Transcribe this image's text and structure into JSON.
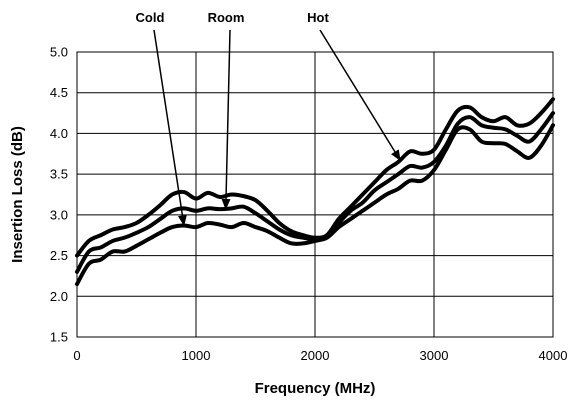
{
  "chart_data": {
    "type": "line",
    "title": "",
    "xlabel": "Frequency (MHz)",
    "ylabel": "Insertion Loss (dB)",
    "xlim": [
      0,
      4000
    ],
    "ylim": [
      1.5,
      5.0
    ],
    "x_ticks": [
      0,
      1000,
      2000,
      3000,
      4000
    ],
    "x_tick_labels": [
      "0",
      "1000",
      "2000",
      "3000",
      "4000"
    ],
    "y_ticks": [
      1.5,
      2.0,
      2.5,
      3.0,
      3.5,
      4.0,
      4.5,
      5.0
    ],
    "y_tick_labels": [
      "1.5",
      "2.0",
      "2.5",
      "3.0",
      "3.5",
      "4.0",
      "4.5",
      "5.0"
    ],
    "grid": true,
    "legend": "none",
    "series": [
      {
        "name": "Cold",
        "x": [
          0,
          100,
          200,
          300,
          400,
          500,
          600,
          700,
          800,
          900,
          1000,
          1100,
          1200,
          1300,
          1400,
          1500,
          1600,
          1700,
          1800,
          1900,
          2000,
          2100,
          2200,
          2300,
          2400,
          2500,
          2600,
          2700,
          2800,
          2900,
          3000,
          3100,
          3200,
          3300,
          3400,
          3500,
          3600,
          3700,
          3800,
          3900,
          4000
        ],
        "values": [
          2.15,
          2.4,
          2.45,
          2.55,
          2.55,
          2.62,
          2.7,
          2.78,
          2.85,
          2.87,
          2.85,
          2.9,
          2.88,
          2.85,
          2.9,
          2.85,
          2.8,
          2.72,
          2.65,
          2.65,
          2.68,
          2.72,
          2.85,
          2.95,
          3.05,
          3.15,
          3.25,
          3.32,
          3.42,
          3.42,
          3.55,
          3.8,
          4.05,
          4.05,
          3.9,
          3.88,
          3.87,
          3.78,
          3.7,
          3.85,
          4.1
        ]
      },
      {
        "name": "Room",
        "x": [
          0,
          100,
          200,
          300,
          400,
          500,
          600,
          700,
          800,
          900,
          1000,
          1100,
          1200,
          1300,
          1400,
          1500,
          1600,
          1700,
          1800,
          1900,
          2000,
          2100,
          2200,
          2300,
          2400,
          2500,
          2600,
          2700,
          2800,
          2900,
          3000,
          3100,
          3200,
          3300,
          3400,
          3500,
          3600,
          3700,
          3800,
          3900,
          4000
        ],
        "values": [
          2.3,
          2.55,
          2.6,
          2.68,
          2.72,
          2.78,
          2.85,
          2.95,
          3.05,
          3.08,
          3.05,
          3.08,
          3.07,
          3.08,
          3.1,
          3.02,
          2.92,
          2.82,
          2.75,
          2.72,
          2.7,
          2.72,
          2.9,
          3.05,
          3.15,
          3.3,
          3.4,
          3.5,
          3.6,
          3.58,
          3.65,
          3.85,
          4.12,
          4.2,
          4.1,
          4.07,
          4.05,
          3.97,
          3.9,
          4.05,
          4.25
        ]
      },
      {
        "name": "Hot",
        "x": [
          0,
          100,
          200,
          300,
          400,
          500,
          600,
          700,
          800,
          900,
          1000,
          1100,
          1200,
          1300,
          1400,
          1500,
          1600,
          1700,
          1800,
          1900,
          2000,
          2100,
          2200,
          2300,
          2400,
          2500,
          2600,
          2700,
          2800,
          2900,
          3000,
          3100,
          3200,
          3300,
          3400,
          3500,
          3600,
          3700,
          3800,
          3900,
          4000
        ],
        "values": [
          2.5,
          2.68,
          2.75,
          2.82,
          2.85,
          2.9,
          3.0,
          3.12,
          3.25,
          3.28,
          3.2,
          3.27,
          3.22,
          3.25,
          3.23,
          3.18,
          3.05,
          2.9,
          2.8,
          2.75,
          2.72,
          2.75,
          2.95,
          3.1,
          3.25,
          3.4,
          3.55,
          3.65,
          3.78,
          3.75,
          3.8,
          4.05,
          4.28,
          4.32,
          4.2,
          4.15,
          4.2,
          4.1,
          4.12,
          4.25,
          4.42
        ]
      }
    ],
    "annotations": [
      {
        "text": "Cold",
        "target_x": 900,
        "target_y": 2.86
      },
      {
        "text": "Room",
        "target_x": 1250,
        "target_y": 3.06
      },
      {
        "text": "Hot",
        "target_x": 2720,
        "target_y": 3.66
      }
    ]
  }
}
